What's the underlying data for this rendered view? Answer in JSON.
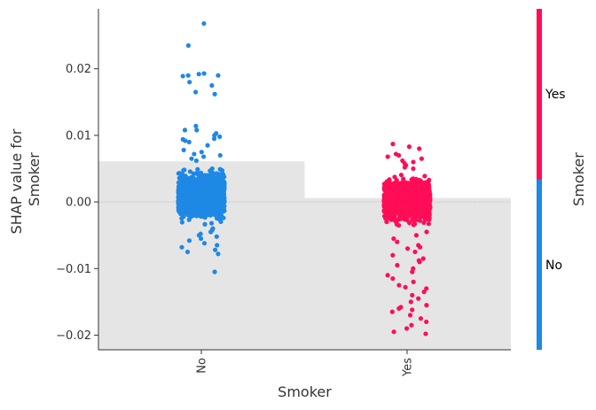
{
  "chart_data": {
    "type": "scatter",
    "xlabel": "Smoker",
    "ylabel_lines": [
      "SHAP value for",
      "Smoker"
    ],
    "categories": [
      "No",
      "Yes"
    ],
    "ylim": [
      -0.0222,
      0.029
    ],
    "yticks": [
      0.02,
      0.01,
      0.0,
      -0.01,
      -0.02
    ],
    "ytick_labels": [
      "0.02",
      "0.01",
      "0.00",
      "−0.01",
      "−0.02"
    ],
    "grid": false,
    "zero_line": true,
    "histogram_bars": [
      {
        "category": "No",
        "height": 0.0061
      },
      {
        "category": "Yes",
        "height": 0.0006
      }
    ],
    "colorbar": {
      "title": "Smoker",
      "labels": [
        "Yes",
        "No"
      ],
      "colors": {
        "Yes": "#ff0d57",
        "No": "#1e88e5"
      }
    },
    "series": [
      {
        "category": "No",
        "color": "#1e88e5",
        "dense_core": {
          "min": -0.0035,
          "max": 0.0055,
          "count": 1400
        },
        "outliers": [
          0.0268,
          0.0235,
          0.0193,
          0.0192,
          0.019,
          0.019,
          0.0189,
          0.018,
          0.0175,
          0.0165,
          0.0162,
          0.0114,
          0.0108,
          0.0108,
          0.0103,
          0.01,
          0.0098,
          0.0095,
          0.0094,
          0.0092,
          0.009,
          0.0085,
          0.0078,
          0.0075,
          0.0072,
          0.007,
          0.0068,
          0.0065,
          0.0062,
          -0.004,
          -0.0042,
          -0.0045,
          -0.0048,
          -0.005,
          -0.0052,
          -0.0055,
          -0.0058,
          -0.0062,
          -0.0065,
          -0.0068,
          -0.0072,
          -0.0075,
          -0.0078,
          -0.0105
        ]
      },
      {
        "category": "Yes",
        "color": "#ff0d57",
        "dense_core": {
          "min": -0.004,
          "max": 0.0045,
          "count": 1400
        },
        "outliers": [
          0.0087,
          0.0083,
          0.008,
          0.0072,
          0.007,
          0.0068,
          0.0065,
          0.0062,
          0.006,
          0.0058,
          0.0055,
          0.0052,
          0.005,
          -0.0045,
          -0.005,
          -0.0055,
          -0.006,
          -0.0065,
          -0.0068,
          -0.007,
          -0.0075,
          -0.008,
          -0.0085,
          -0.0088,
          -0.009,
          -0.0095,
          -0.01,
          -0.0105,
          -0.011,
          -0.0115,
          -0.012,
          -0.0125,
          -0.0128,
          -0.013,
          -0.0135,
          -0.014,
          -0.0145,
          -0.015,
          -0.0155,
          -0.0158,
          -0.016,
          -0.0162,
          -0.0165,
          -0.017,
          -0.0175,
          -0.018,
          -0.0185,
          -0.019,
          -0.0195,
          -0.0198
        ]
      }
    ]
  }
}
